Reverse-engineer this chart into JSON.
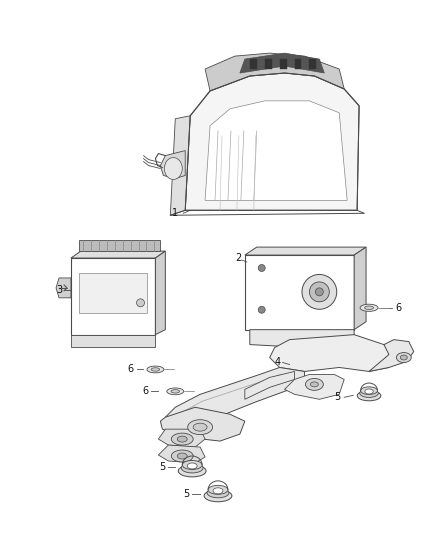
{
  "bg_color": "#ffffff",
  "line_color": "#4a4a4a",
  "label_color": "#111111",
  "fig_width": 4.38,
  "fig_height": 5.33,
  "dpi": 100
}
